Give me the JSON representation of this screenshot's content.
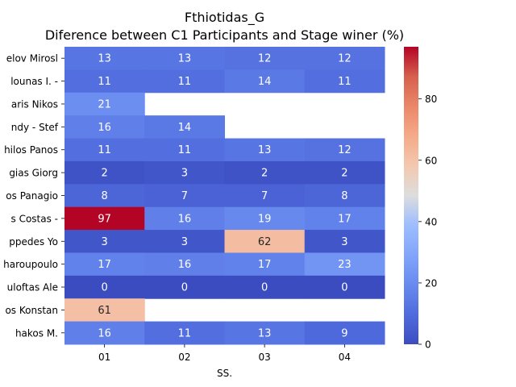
{
  "chart_data": {
    "type": "heatmap",
    "title": "Fthiotidas_G",
    "subtitle": "Diference between C1 Participants and Stage winer (%)",
    "xlabel": "SS.",
    "ylabel": "",
    "x_categories": [
      "01",
      "02",
      "03",
      "04"
    ],
    "y_categories": [
      "elov Mirosl",
      "lounas I.  -",
      "aris Nikos ",
      "ndy  - Stef",
      "hilos Panos",
      "gias Giorg",
      "os Panagio",
      "s Costas  -",
      "ppedes Yo",
      "haroupoulo",
      "uloftas Ale",
      "os Konstan",
      "hakos M.  "
    ],
    "values": [
      [
        13,
        13,
        12,
        12
      ],
      [
        11,
        11,
        14,
        11
      ],
      [
        21,
        null,
        null,
        null
      ],
      [
        16,
        14,
        null,
        null
      ],
      [
        11,
        11,
        13,
        12
      ],
      [
        2,
        3,
        2,
        2
      ],
      [
        8,
        7,
        7,
        8
      ],
      [
        97,
        16,
        19,
        17
      ],
      [
        3,
        3,
        62,
        3
      ],
      [
        17,
        16,
        17,
        23
      ],
      [
        0,
        0,
        0,
        0
      ],
      [
        61,
        null,
        null,
        null
      ],
      [
        16,
        11,
        13,
        9
      ]
    ],
    "colormap": "coolwarm",
    "vmin": 0,
    "vmax": 97,
    "colorbar_ticks": [
      0,
      20,
      40,
      60,
      80
    ],
    "colorbar_tick_labels": [
      "0",
      "20",
      "40",
      "60",
      "80"
    ],
    "grid": false
  }
}
